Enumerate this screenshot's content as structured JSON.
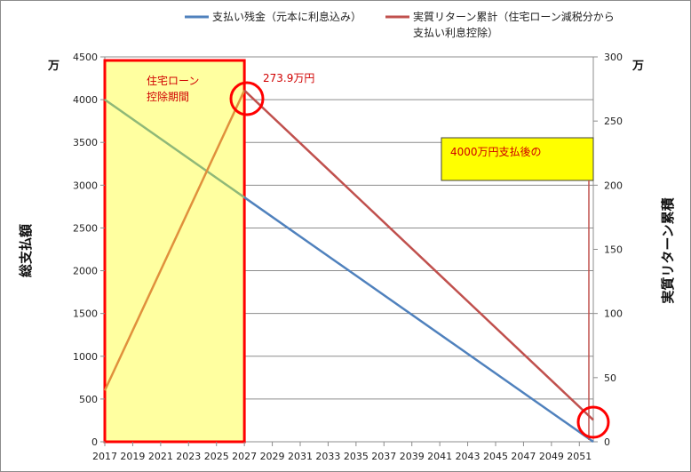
{
  "chart_data": {
    "type": "line",
    "x": [
      2017,
      2027,
      2051
    ],
    "x_ticks": [
      "2017",
      "2019",
      "2021",
      "2023",
      "2025",
      "2027",
      "2029",
      "2031",
      "2033",
      "2035",
      "2037",
      "2039",
      "2041",
      "2043",
      "2045",
      "2047",
      "2049",
      "2051"
    ],
    "xlim": [
      2017,
      2052
    ],
    "y_left": {
      "label": "総支払額",
      "unit": "万",
      "ylim": [
        0,
        4500
      ],
      "ticks": [
        "0",
        "500",
        "1000",
        "1500",
        "2000",
        "2500",
        "3000",
        "3500",
        "4000",
        "4500"
      ]
    },
    "y_right": {
      "label": "実質リターン累積",
      "unit": "万",
      "ylim": [
        0,
        300
      ],
      "ticks": [
        "0",
        "50",
        "100",
        "150",
        "200",
        "250",
        "300"
      ]
    },
    "grid": true,
    "legend_position": "top",
    "series": [
      {
        "name": "支払い残金（元本に利息込み）",
        "axis": "left",
        "color": "#4f81bd",
        "x": [
          2017,
          2052
        ],
        "y": [
          4000,
          0
        ]
      },
      {
        "name": "実質リターン累計（住宅ローン減税分から支払い利息控除）",
        "axis": "right",
        "color": "#c0504d",
        "x": [
          2017,
          2027,
          2052
        ],
        "y": [
          40,
          273.9,
          17
        ]
      }
    ],
    "legend_lines": [
      [
        "支払い残金（元本に利息込み）"
      ],
      [
        "実質リターン累計（住宅ローン減税分から",
        "支払い利息控除）"
      ]
    ],
    "annotations": {
      "period_label": [
        "住宅ローン",
        "控除期間"
      ],
      "peak_label": "273.9万円",
      "callout": "4000万円支払後の",
      "highlight_color": "#ffff00",
      "period_border_color": "#ff0000",
      "period_fill": "#ffffa0",
      "overlap_blue_color": "#8fb878",
      "overlap_red_color": "#e0903c"
    }
  }
}
